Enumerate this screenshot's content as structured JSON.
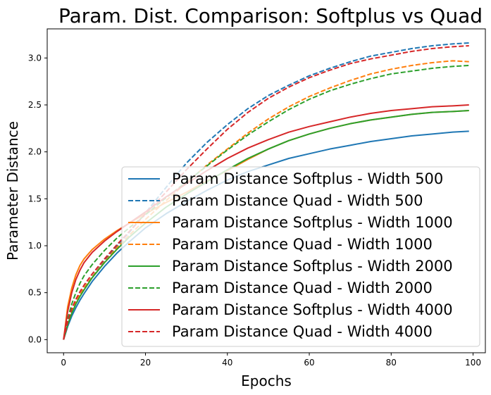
{
  "chart_data": {
    "type": "line",
    "title": "Param. Dist. Comparison: Softplus vs Quad",
    "xlabel": "Epochs",
    "ylabel": "Parameter Distance",
    "xlim": [
      -4,
      103
    ],
    "ylim": [
      -0.14,
      3.31
    ],
    "xticks": [
      0,
      20,
      40,
      60,
      80,
      100
    ],
    "yticks": [
      0.0,
      0.5,
      1.0,
      1.5,
      2.0,
      2.5,
      3.0
    ],
    "xtick_labels": [
      "0",
      "20",
      "40",
      "60",
      "80",
      "100"
    ],
    "ytick_labels": [
      "0.0",
      "0.5",
      "1.0",
      "1.5",
      "2.0",
      "2.5",
      "3.0"
    ],
    "grid": false,
    "legend_position": "lower-right",
    "x": [
      0,
      1,
      2,
      3,
      4,
      5,
      7,
      10,
      13,
      16,
      20,
      25,
      30,
      35,
      40,
      45,
      50,
      55,
      60,
      65,
      70,
      75,
      80,
      85,
      90,
      95,
      99
    ],
    "series": [
      {
        "name": "Param Distance Softplus - Width 500",
        "color": "#1f77b4",
        "dash": "solid",
        "values": [
          0.0,
          0.14,
          0.25,
          0.34,
          0.42,
          0.49,
          0.62,
          0.78,
          0.92,
          1.04,
          1.19,
          1.34,
          1.47,
          1.59,
          1.7,
          1.79,
          1.86,
          1.93,
          1.98,
          2.03,
          2.07,
          2.11,
          2.14,
          2.17,
          2.19,
          2.21,
          2.22
        ]
      },
      {
        "name": "Param Distance Quad - Width 500",
        "color": "#1f77b4",
        "dash": "dashed",
        "values": [
          0.0,
          0.18,
          0.31,
          0.4,
          0.48,
          0.55,
          0.67,
          0.84,
          1.0,
          1.14,
          1.35,
          1.62,
          1.88,
          2.1,
          2.29,
          2.46,
          2.6,
          2.71,
          2.81,
          2.89,
          2.96,
          3.02,
          3.06,
          3.1,
          3.13,
          3.15,
          3.16
        ]
      },
      {
        "name": "Param Distance Softplus - Width 1000",
        "color": "#ff7f0e",
        "dash": "solid",
        "values": [
          0.0,
          0.35,
          0.55,
          0.69,
          0.79,
          0.86,
          0.96,
          1.07,
          1.16,
          1.24,
          1.34,
          1.46,
          1.57,
          1.69,
          1.8,
          1.92,
          2.03,
          2.12,
          2.19,
          2.25,
          2.3,
          2.34,
          2.37,
          2.4,
          2.42,
          2.43,
          2.44
        ]
      },
      {
        "name": "Param Distance Quad - Width 1000",
        "color": "#ff7f0e",
        "dash": "dashed",
        "values": [
          0.0,
          0.17,
          0.3,
          0.4,
          0.48,
          0.55,
          0.67,
          0.83,
          0.98,
          1.11,
          1.28,
          1.48,
          1.67,
          1.86,
          2.03,
          2.2,
          2.35,
          2.48,
          2.59,
          2.68,
          2.76,
          2.83,
          2.88,
          2.92,
          2.95,
          2.97,
          2.96
        ]
      },
      {
        "name": "Param Distance Softplus - Width 2000",
        "color": "#2ca02c",
        "dash": "solid",
        "values": [
          0.0,
          0.16,
          0.28,
          0.38,
          0.46,
          0.53,
          0.66,
          0.82,
          0.96,
          1.09,
          1.24,
          1.41,
          1.55,
          1.68,
          1.81,
          1.93,
          2.03,
          2.12,
          2.19,
          2.25,
          2.3,
          2.34,
          2.37,
          2.4,
          2.42,
          2.43,
          2.44
        ]
      },
      {
        "name": "Param Distance Quad - Width 2000",
        "color": "#2ca02c",
        "dash": "dashed",
        "values": [
          0.0,
          0.22,
          0.38,
          0.5,
          0.6,
          0.68,
          0.8,
          0.95,
          1.08,
          1.19,
          1.33,
          1.51,
          1.68,
          1.85,
          2.02,
          2.18,
          2.32,
          2.45,
          2.56,
          2.65,
          2.72,
          2.78,
          2.83,
          2.86,
          2.89,
          2.91,
          2.92
        ]
      },
      {
        "name": "Param Distance Softplus - Width 4000",
        "color": "#d62728",
        "dash": "solid",
        "values": [
          0.0,
          0.3,
          0.5,
          0.64,
          0.74,
          0.82,
          0.93,
          1.05,
          1.15,
          1.24,
          1.36,
          1.52,
          1.66,
          1.8,
          1.93,
          2.04,
          2.13,
          2.21,
          2.27,
          2.32,
          2.37,
          2.41,
          2.44,
          2.46,
          2.48,
          2.49,
          2.5
        ]
      },
      {
        "name": "Param Distance Quad - Width 4000",
        "color": "#d62728",
        "dash": "dashed",
        "values": [
          0.0,
          0.19,
          0.33,
          0.43,
          0.51,
          0.58,
          0.7,
          0.86,
          1.01,
          1.15,
          1.34,
          1.57,
          1.81,
          2.03,
          2.24,
          2.42,
          2.57,
          2.69,
          2.79,
          2.87,
          2.94,
          2.99,
          3.03,
          3.07,
          3.1,
          3.12,
          3.13
        ]
      }
    ]
  }
}
